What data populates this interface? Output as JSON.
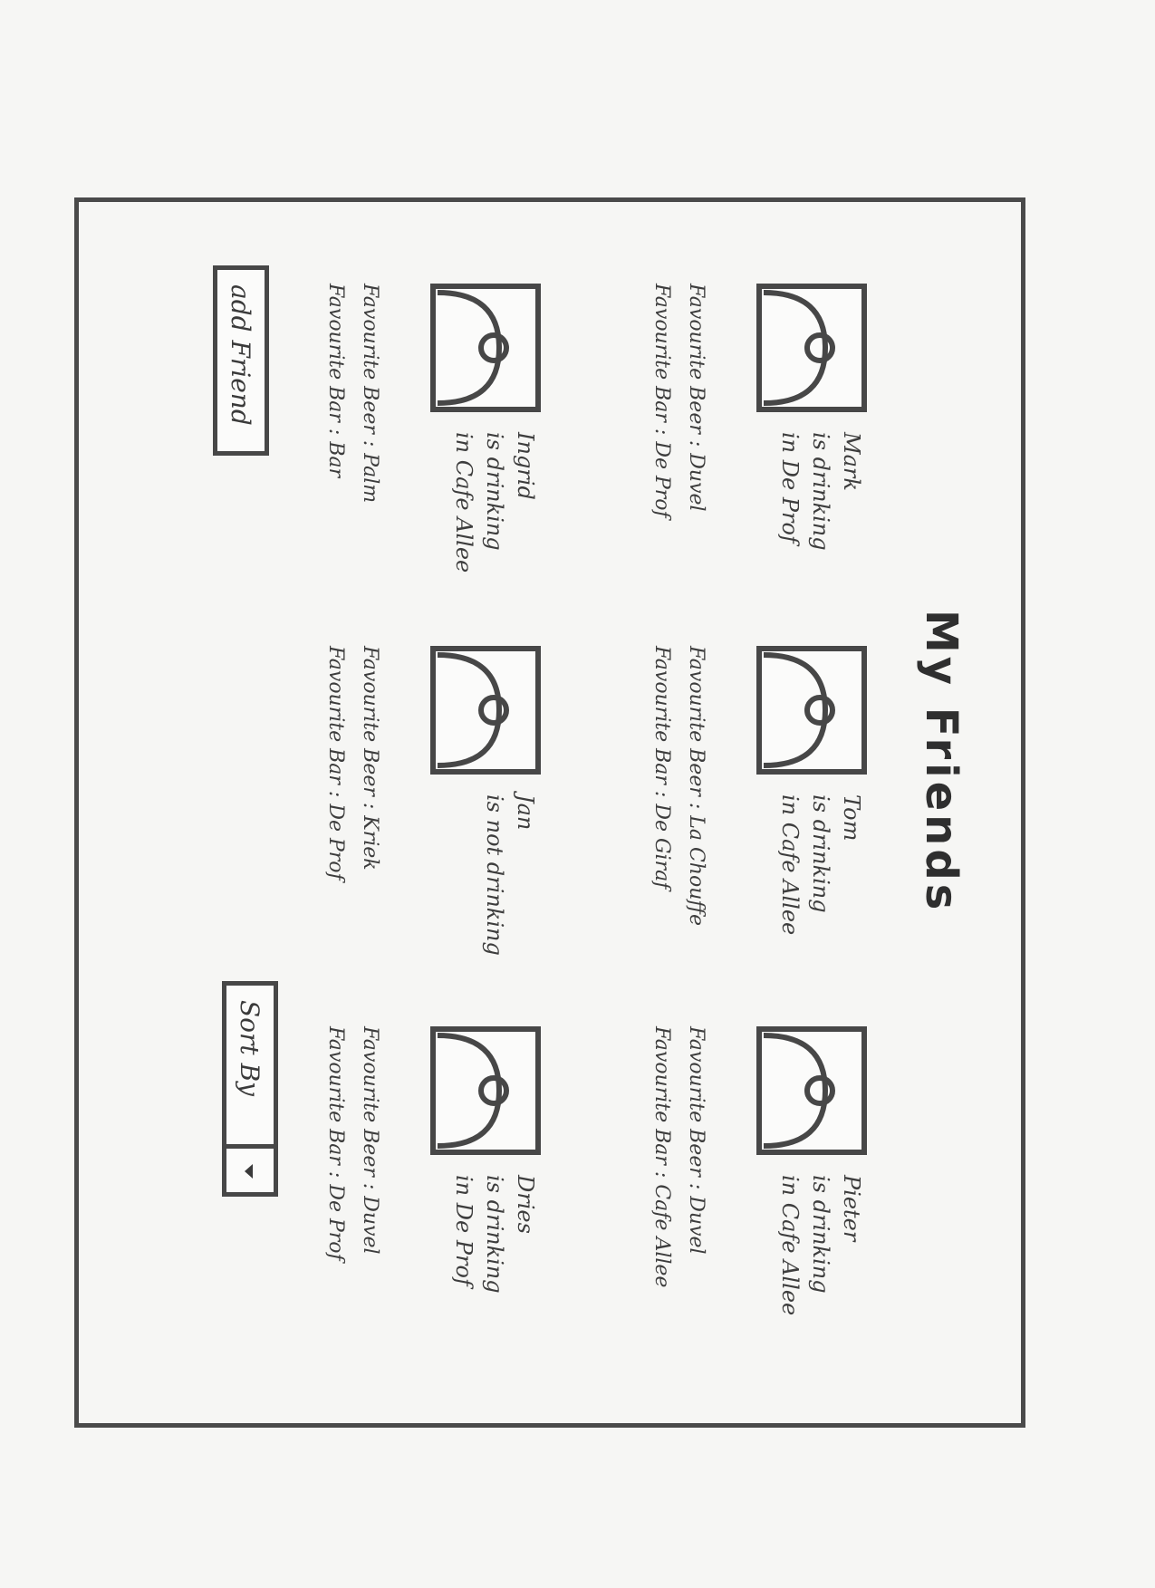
{
  "page": {
    "title": "My Friends"
  },
  "friends": [
    {
      "name": "Mark",
      "status_line1": "is drinking",
      "status_line2": "in De Prof",
      "fav_beer": "Favourite Beer : Duvel",
      "fav_bar": "Favourite Bar : De Prof"
    },
    {
      "name": "Tom",
      "status_line1": "is drinking",
      "status_line2": "in Cafe Allee",
      "fav_beer": "Favourite Beer : La Chouffe",
      "fav_bar": "Favourite Bar : De Giraf"
    },
    {
      "name": "Pieter",
      "status_line1": "is drinking",
      "status_line2": "in Cafe Allee",
      "fav_beer": "Favourite Beer : Duvel",
      "fav_bar": "Favourite Bar : Cafe Allee"
    },
    {
      "name": "Ingrid",
      "status_line1": "is drinking",
      "status_line2": "in Cafe Allee",
      "fav_beer": "Favourite Beer : Palm",
      "fav_bar": "Favourite Bar : Bar"
    },
    {
      "name": "Jan",
      "status_line1": "is not drinking",
      "status_line2": "",
      "fav_beer": "Favourite Beer : Kriek",
      "fav_bar": "Favourite Bar : De Prof"
    },
    {
      "name": "Dries",
      "status_line1": "is drinking",
      "status_line2": "in De Prof",
      "fav_beer": "Favourite Beer : Duvel",
      "fav_bar": "Favourite Bar : De Prof"
    }
  ],
  "buttons": {
    "add_friend": "add Friend",
    "sort_by": "Sort By"
  },
  "icons": {
    "avatar": "person-placeholder-icon",
    "dropdown": "chevron-down-icon"
  }
}
